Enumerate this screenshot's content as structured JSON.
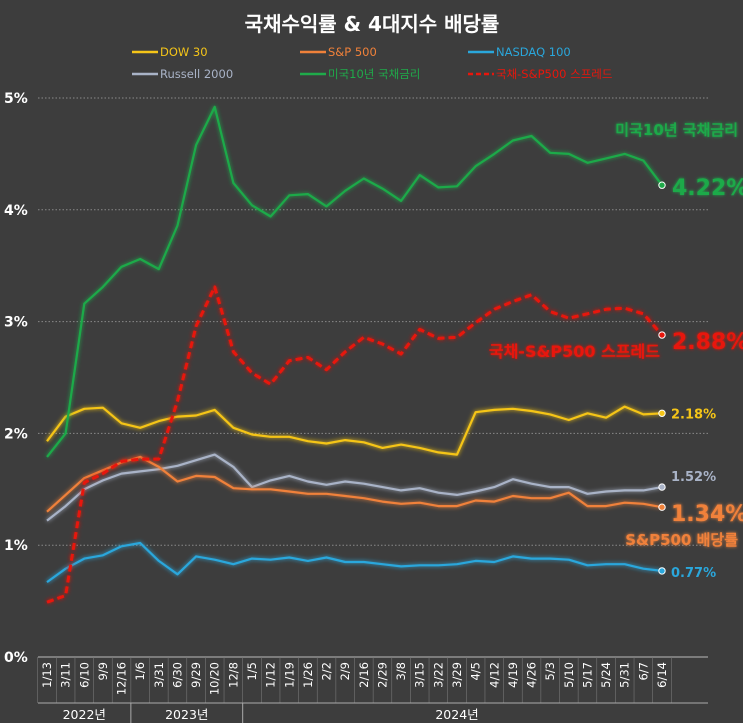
{
  "chart_data": {
    "type": "line",
    "title": "국채수익률 & 4대지수 배당률",
    "xlabel": "",
    "ylabel": "",
    "ylim": [
      0,
      5
    ],
    "y_ticks": [
      "0%",
      "1%",
      "2%",
      "3%",
      "4%",
      "5%"
    ],
    "grid": true,
    "legend_position": "top",
    "x": [
      "1/13",
      "3/11",
      "6/10",
      "9/9",
      "12/16",
      "1/6",
      "3/31",
      "6/30",
      "9/29",
      "10/20",
      "12/8",
      "1/5",
      "1/12",
      "1/19",
      "1/26",
      "2/2",
      "2/9",
      "2/16",
      "2/29",
      "3/8",
      "3/15",
      "3/22",
      "3/29",
      "4/5",
      "4/12",
      "4/19",
      "4/26",
      "5/3",
      "5/10",
      "5/17",
      "5/24",
      "5/31",
      "6/7",
      "6/14"
    ],
    "year_groups": [
      {
        "label": "2022년",
        "span": 5
      },
      {
        "label": "2023년",
        "span": 6
      },
      {
        "label": "2024년",
        "span": 23
      }
    ],
    "series": [
      {
        "name": "DOW 30",
        "color": "#f5c518",
        "dash": false,
        "values": [
          1.93,
          2.15,
          2.22,
          2.23,
          2.09,
          2.05,
          2.11,
          2.15,
          2.16,
          2.21,
          2.05,
          1.99,
          1.97,
          1.97,
          1.93,
          1.91,
          1.94,
          1.92,
          1.87,
          1.9,
          1.87,
          1.83,
          1.81,
          2.19,
          2.21,
          2.22,
          2.2,
          2.17,
          2.12,
          2.18,
          2.14,
          2.24,
          2.17,
          2.18
        ]
      },
      {
        "name": "S&P 500",
        "color": "#f0813a",
        "dash": false,
        "values": [
          1.3,
          1.45,
          1.6,
          1.67,
          1.74,
          1.79,
          1.7,
          1.57,
          1.62,
          1.61,
          1.51,
          1.5,
          1.5,
          1.48,
          1.46,
          1.46,
          1.44,
          1.42,
          1.39,
          1.37,
          1.38,
          1.35,
          1.35,
          1.4,
          1.39,
          1.44,
          1.42,
          1.42,
          1.47,
          1.35,
          1.35,
          1.38,
          1.37,
          1.34
        ]
      },
      {
        "name": "NASDAQ 100",
        "color": "#2aa7dc",
        "dash": false,
        "values": [
          0.67,
          0.79,
          0.88,
          0.91,
          0.99,
          1.02,
          0.86,
          0.74,
          0.9,
          0.87,
          0.83,
          0.88,
          0.87,
          0.89,
          0.86,
          0.89,
          0.85,
          0.85,
          0.83,
          0.81,
          0.82,
          0.82,
          0.83,
          0.86,
          0.85,
          0.9,
          0.88,
          0.88,
          0.87,
          0.82,
          0.83,
          0.83,
          0.79,
          0.77
        ]
      },
      {
        "name": "Russell 2000",
        "color": "#a9b3c7",
        "dash": false,
        "values": [
          1.22,
          1.35,
          1.5,
          1.58,
          1.64,
          1.66,
          1.68,
          1.71,
          1.76,
          1.81,
          1.7,
          1.52,
          1.58,
          1.62,
          1.57,
          1.54,
          1.57,
          1.55,
          1.52,
          1.49,
          1.51,
          1.47,
          1.45,
          1.48,
          1.52,
          1.59,
          1.55,
          1.52,
          1.52,
          1.46,
          1.48,
          1.49,
          1.49,
          1.52
        ]
      },
      {
        "name": "미국10년 국채금리",
        "color": "#1faa4a",
        "dash": false,
        "values": [
          1.79,
          2.0,
          3.16,
          3.31,
          3.49,
          3.56,
          3.47,
          3.86,
          4.58,
          4.92,
          4.24,
          4.04,
          3.94,
          4.13,
          4.14,
          4.03,
          4.17,
          4.28,
          4.19,
          4.08,
          4.31,
          4.2,
          4.21,
          4.39,
          4.5,
          4.62,
          4.66,
          4.51,
          4.5,
          4.42,
          4.46,
          4.5,
          4.44,
          4.22
        ]
      },
      {
        "name": "국채-S&P500 스프레드",
        "color": "#e8160c",
        "dash": true,
        "values": [
          0.49,
          0.55,
          1.56,
          1.64,
          1.75,
          1.77,
          1.77,
          2.29,
          2.96,
          3.31,
          2.73,
          2.54,
          2.44,
          2.65,
          2.68,
          2.57,
          2.73,
          2.86,
          2.8,
          2.71,
          2.93,
          2.85,
          2.86,
          2.99,
          3.11,
          3.18,
          3.24,
          3.09,
          3.03,
          3.07,
          3.11,
          3.12,
          3.07,
          2.88
        ]
      }
    ],
    "annotations": [
      {
        "series": "미국10년 국채금리",
        "label": "미국10년 국채금리",
        "value_label": "4.22%"
      },
      {
        "series": "국채-S&P500 스프레드",
        "label": "국채-S&P500 스프레드",
        "value_label": "2.88%"
      },
      {
        "series": "DOW 30",
        "value_label": "2.18%"
      },
      {
        "series": "Russell 2000",
        "value_label": "1.52%"
      },
      {
        "series": "S&P 500",
        "label": "S&P500 배당률",
        "value_label": "1.34%"
      },
      {
        "series": "NASDAQ 100",
        "value_label": "0.77%"
      }
    ]
  }
}
